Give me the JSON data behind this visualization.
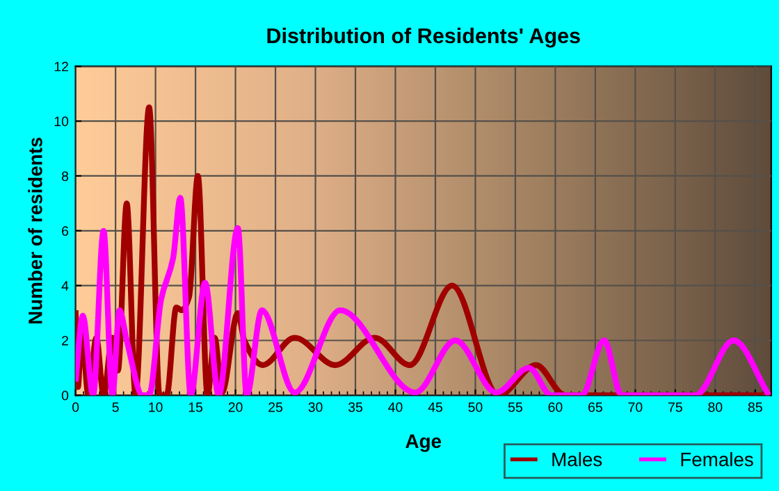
{
  "chart_data": {
    "type": "line",
    "title": "Distribution of Residents' Ages",
    "xlabel": "Age",
    "ylabel": "Number of residents",
    "xlim": [
      0,
      87
    ],
    "xticks": [
      0,
      5,
      10,
      15,
      20,
      25,
      30,
      35,
      40,
      45,
      50,
      55,
      60,
      65,
      70,
      75,
      80,
      85
    ],
    "ylim": [
      0,
      12
    ],
    "yticks": [
      0,
      2,
      4,
      6,
      8,
      10,
      12
    ],
    "grid": true,
    "legend": "bottom right",
    "marker": "none",
    "line_style": "solid",
    "series": [
      {
        "name": "Males",
        "color": "#a00000",
        "x": [
          0,
          0.3,
          0.75,
          1.6,
          2.6,
          3.5,
          4.6,
          5.3,
          6.4,
          7.5,
          9.2,
          10.5,
          11.4,
          12.6,
          13.3,
          14.2,
          15.3,
          16.5,
          17.4,
          18.3,
          20.3,
          21.1,
          23.4,
          27.4,
          32.5,
          37.4,
          41.8,
          47.1,
          52.9,
          57.6,
          61.2,
          87
        ],
        "values": [
          3.1,
          0.3,
          2.4,
          0,
          2.1,
          0,
          2.1,
          0.9,
          7.0,
          0,
          10.5,
          0,
          0,
          3.2,
          3.1,
          3.6,
          8.0,
          0,
          2.1,
          0.1,
          3.0,
          2.0,
          1.1,
          2.1,
          1.1,
          2.1,
          1.1,
          4.0,
          0,
          1.1,
          0,
          0
        ]
      },
      {
        "name": "Females",
        "color": "#ff00ff",
        "x": [
          0,
          0.9,
          2.2,
          3.5,
          4.6,
          5.5,
          6.4,
          8.4,
          9.2,
          10.7,
          12.2,
          13.1,
          14.4,
          16.2,
          17.9,
          20.3,
          21.4,
          23.3,
          27.4,
          33.1,
          42.5,
          47.5,
          52.6,
          56.7,
          59.5,
          63.3,
          66.1,
          68.3,
          77.5,
          82.3,
          86.7
        ],
        "values": [
          0.5,
          2.9,
          0,
          6.0,
          0,
          3.1,
          2.0,
          0,
          0,
          3.5,
          5.0,
          7.2,
          0,
          4.1,
          0,
          6.1,
          0,
          3.1,
          0.1,
          3.1,
          0.1,
          2.0,
          0.1,
          1.0,
          0,
          0,
          2.0,
          0,
          0,
          2.0,
          0
        ]
      }
    ]
  }
}
